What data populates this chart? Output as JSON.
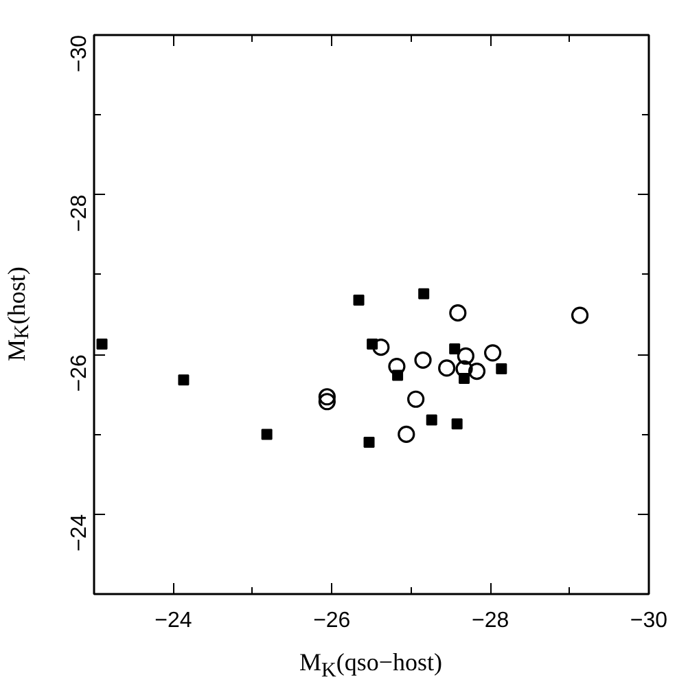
{
  "chart_data": {
    "type": "scatter",
    "xlabel": "M$_{K}$(qso−host)",
    "ylabel": "M$_{K}$(host)",
    "xlim": [
      -23,
      -30
    ],
    "ylim": [
      -23,
      -30
    ],
    "xticks": [
      {
        "value": -23,
        "label": null
      },
      -24,
      {
        "value": -25,
        "label": null
      },
      -26,
      {
        "value": -27,
        "label": null
      },
      -28,
      {
        "value": -29,
        "label": null
      },
      -30
    ],
    "yticks": [
      {
        "value": -23,
        "label": null
      },
      -24,
      {
        "value": -25,
        "label": null
      },
      -26,
      {
        "value": -27,
        "label": null
      },
      -28,
      {
        "value": -29,
        "label": null
      },
      -30
    ],
    "grid": false,
    "series": [
      {
        "color": "#000000",
        "marker": "square",
        "x": [
          -26.34,
          -27.16,
          -26.51,
          -27.55,
          -26.83,
          -27.67,
          -28.14,
          -27.26,
          -27.58,
          -26.47,
          -23.1,
          -24.13,
          -25.18
        ],
        "values": [
          -26.68,
          -26.76,
          -26.13,
          -26.07,
          -25.74,
          -25.7,
          -25.82,
          -25.18,
          -25.13,
          -24.9,
          -26.13,
          -25.68,
          -25.0
        ]
      },
      {
        "color": "#000000",
        "marker": "circle",
        "x": [
          -27.59,
          -29.13,
          -26.62,
          -27.69,
          -28.03,
          -26.82,
          -27.15,
          -27.45,
          -27.67,
          -27.83,
          -27.06,
          -26.94,
          -25.94,
          -25.94
        ],
        "values": [
          -26.52,
          -26.49,
          -26.09,
          -25.98,
          -26.02,
          -25.85,
          -25.93,
          -25.83,
          -25.82,
          -25.79,
          -25.44,
          -25.0,
          -25.41,
          -25.47
        ]
      }
    ]
  }
}
